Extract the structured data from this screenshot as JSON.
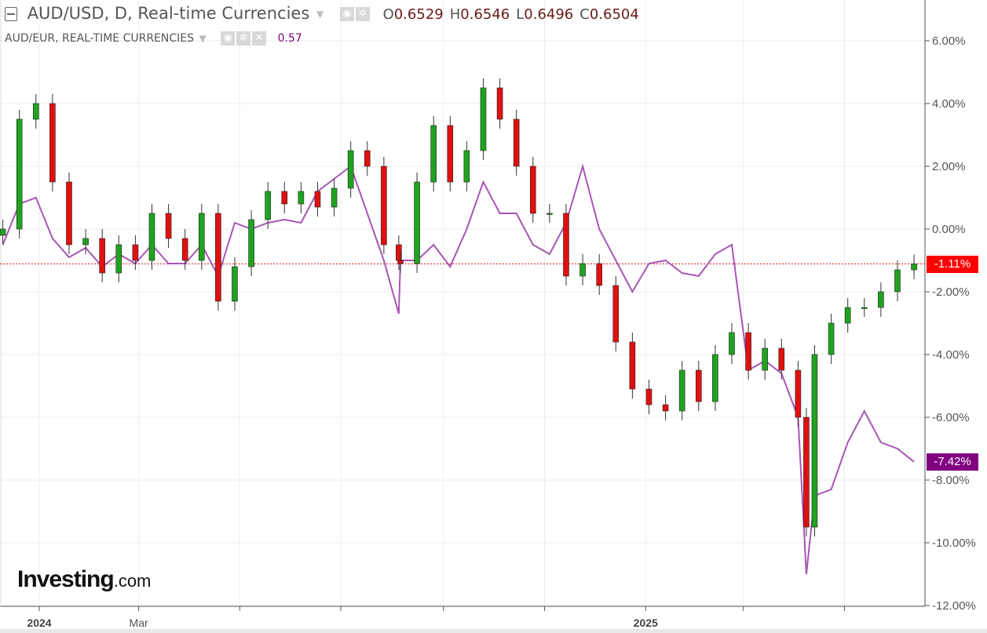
{
  "header": {
    "symbol_title": "AUD/USD, D, Real-time Currencies",
    "ohlc": [
      {
        "label": "O",
        "value": "0.6529"
      },
      {
        "label": "H",
        "value": "0.6546"
      },
      {
        "label": "L",
        "value": "0.6496"
      },
      {
        "label": "C",
        "value": "0.6504"
      }
    ],
    "compare_title": "AUD/EUR, REAL-TIME CURRENCIES",
    "compare_value": "0.57",
    "icons": [
      "collapse-icon",
      "eye-icon",
      "gear-icon",
      "close-icon",
      "caret-down-icon"
    ]
  },
  "logo": {
    "brand": "Investing",
    "suffix": ".com"
  },
  "badges": {
    "main": "-1.11%",
    "compare": "-7.42%"
  },
  "colors": {
    "up": "#1fa31f",
    "down": "#e01010",
    "compare": "#a855b5",
    "compare_badge": "#800080",
    "main_badge": "#ff0000",
    "grid": "#eeeeee"
  },
  "chart_data": {
    "type": "candlestick+line",
    "title": "AUD/USD, D, Real-time Currencies",
    "ylabel": "",
    "ylim": [
      -12,
      7
    ],
    "yticks": [
      6,
      4,
      2,
      0,
      -2,
      -4,
      -6,
      -8,
      -10,
      -12
    ],
    "ytick_labels": [
      "6.00%",
      "4.00%",
      "2.00%",
      "0.00%",
      "-2.00%",
      "-4.00%",
      "-6.00%",
      "-8.00%",
      "-10.00%",
      "-12.00%"
    ],
    "xticks": [
      {
        "date": "2024-01-01",
        "label": "2024"
      },
      {
        "date": "2024-03-01",
        "label": "Mar"
      },
      {
        "date": "2024-05-01",
        "label": ""
      },
      {
        "date": "2024-07-01",
        "label": ""
      },
      {
        "date": "2024-09-01",
        "label": ""
      },
      {
        "date": "2024-11-01",
        "label": ""
      },
      {
        "date": "2025-01-01",
        "label": "2025"
      },
      {
        "date": "2025-03-01",
        "label": ""
      },
      {
        "date": "2025-05-01",
        "label": ""
      }
    ],
    "grid": true,
    "dates": [
      "2023-12-10",
      "2023-12-20",
      "2023-12-30",
      "2024-01-09",
      "2024-01-19",
      "2024-01-29",
      "2024-02-08",
      "2024-02-18",
      "2024-02-28",
      "2024-03-09",
      "2024-03-19",
      "2024-03-29",
      "2024-04-08",
      "2024-04-18",
      "2024-04-28",
      "2024-05-08",
      "2024-05-18",
      "2024-05-28",
      "2024-06-07",
      "2024-06-17",
      "2024-06-27",
      "2024-07-07",
      "2024-07-17",
      "2024-07-27",
      "2024-08-05",
      "2024-08-06",
      "2024-08-16",
      "2024-08-26",
      "2024-09-05",
      "2024-09-15",
      "2024-09-25",
      "2024-10-05",
      "2024-10-15",
      "2024-10-25",
      "2024-11-04",
      "2024-11-14",
      "2024-11-24",
      "2024-12-04",
      "2024-12-14",
      "2024-12-24",
      "2025-01-03",
      "2025-01-13",
      "2025-01-23",
      "2025-02-02",
      "2025-02-12",
      "2025-02-22",
      "2025-03-04",
      "2025-03-14",
      "2025-03-24",
      "2025-04-03",
      "2025-04-08",
      "2025-04-13",
      "2025-04-23",
      "2025-05-03",
      "2025-05-13",
      "2025-05-23",
      "2025-06-02",
      "2025-06-12"
    ],
    "series": [
      {
        "name": "AUD/USD",
        "kind": "candles",
        "values": [
          0,
          3.5,
          4,
          1.5,
          -0.5,
          -0.3,
          -1.4,
          -0.5,
          -1,
          0.5,
          -0.3,
          -1,
          0.5,
          -2.3,
          -1.2,
          0.3,
          1.2,
          0.8,
          1.2,
          0.7,
          1.3,
          2.5,
          2,
          -0.5,
          -1.0,
          -1.1,
          1.5,
          3.3,
          1.5,
          2.5,
          4.5,
          3.5,
          2,
          0.5,
          0.5,
          -1.5,
          -1.1,
          -1.8,
          -3.6,
          -5.1,
          -5.6,
          -5.8,
          -4.5,
          -5.5,
          -4,
          -3.3,
          -4.5,
          -3.8,
          -4.5,
          -6.0,
          -9.5,
          -4.0,
          -3,
          -2.5,
          -2.5,
          -2.0,
          -1.3,
          -1.11
        ]
      },
      {
        "name": "AUD/EUR",
        "kind": "line",
        "values": [
          -0.5,
          0.8,
          1,
          -0.3,
          -0.9,
          -0.6,
          -1.2,
          -0.8,
          -1.1,
          -0.5,
          -1.1,
          -1.1,
          -0.5,
          -1.5,
          0.2,
          0,
          0.2,
          0.3,
          0.2,
          1.2,
          1.6,
          2,
          0.5,
          -1,
          -2.7,
          -1,
          -1,
          -0.5,
          -1.2,
          0,
          1.5,
          0.5,
          0.5,
          -0.5,
          -0.8,
          0.2,
          2,
          0,
          -1,
          -2,
          -1.1,
          -1,
          -1.4,
          -1.5,
          -0.8,
          -0.5,
          -4.5,
          -4.2,
          -4.6,
          -6,
          -11,
          -8.5,
          -8.3,
          -6.8,
          -5.8,
          -6.8,
          -7,
          -7.42
        ]
      }
    ],
    "current_line": -1.11
  }
}
